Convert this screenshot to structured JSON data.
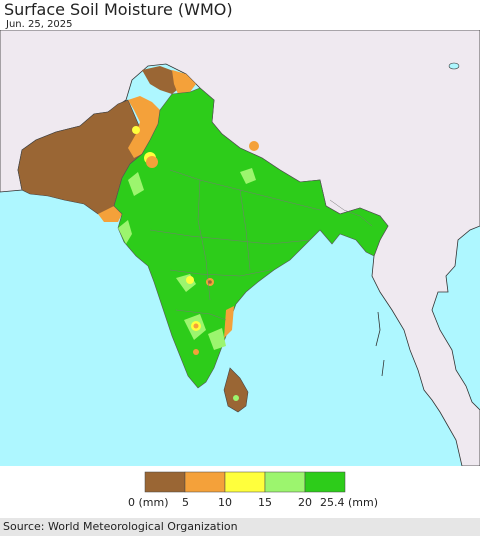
{
  "header": {
    "title": "Surface Soil Moisture (WMO)",
    "date": "Jun. 25, 2025"
  },
  "legend": {
    "bins": [
      {
        "color": "#9a6634"
      },
      {
        "color": "#f4a13a"
      },
      {
        "color": "#ffff3c"
      },
      {
        "color": "#9cf56e"
      },
      {
        "color": "#2dcc1a"
      }
    ],
    "tick_labels": [
      "0 (mm)",
      "5",
      "10",
      "15",
      "20",
      "25.4 (mm)"
    ]
  },
  "colors": {
    "ocean": "#aef7ff",
    "outside_land": "#efe9f0",
    "border": "#333333",
    "inner_border": "#666666"
  },
  "footer": {
    "source": "Source: World Meteorological Organization"
  }
}
